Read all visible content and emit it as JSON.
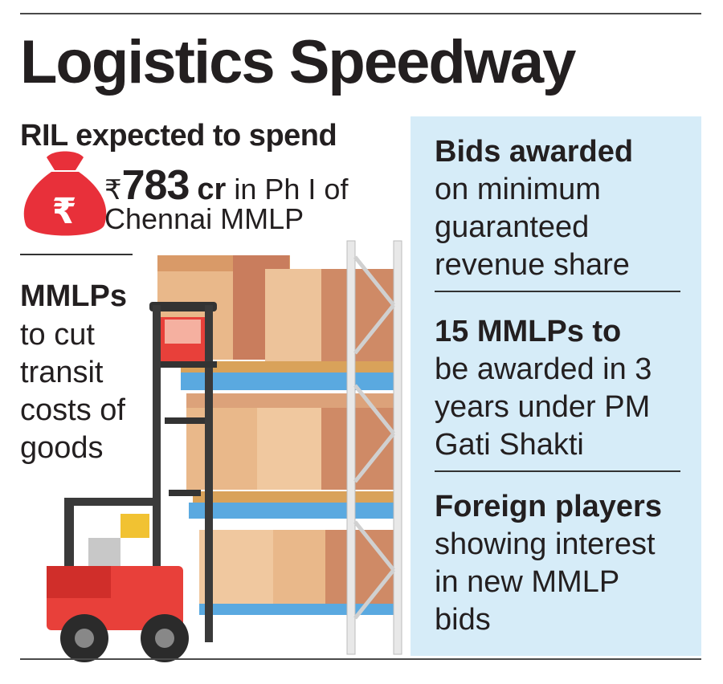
{
  "title": "Logistics Speedway",
  "spend": {
    "heading": "RIL expected to spend",
    "currency_symbol": "₹",
    "amount": "783",
    "unit": "cr",
    "line1_suffix": "in Ph I of",
    "line2": "Chennai MMLP"
  },
  "mmlps": {
    "bold": "MMLPs",
    "lines": [
      "to cut",
      "transit",
      "costs of",
      "goods"
    ]
  },
  "panel": {
    "items": [
      {
        "bold": "Bids awarded",
        "lines": [
          "on minimum",
          "guaranteed",
          "revenue share"
        ]
      },
      {
        "bold": "15 MMLPs to",
        "lines": [
          "be awarded in 3",
          "years under PM",
          "Gati Shakti"
        ]
      },
      {
        "bold": "Foreign players",
        "lines": [
          "showing interest",
          "in new MMLP",
          "bids"
        ]
      }
    ]
  },
  "icons": [
    "money-bag-icon",
    "rupee-icon",
    "forklift-illustration",
    "warehouse-rack-illustration"
  ],
  "colors": {
    "accent_red": "#e8303a",
    "panel_blue": "#d6ecf8",
    "rack_blue": "#4fa3e0",
    "box_tan": "#e9b88a"
  }
}
